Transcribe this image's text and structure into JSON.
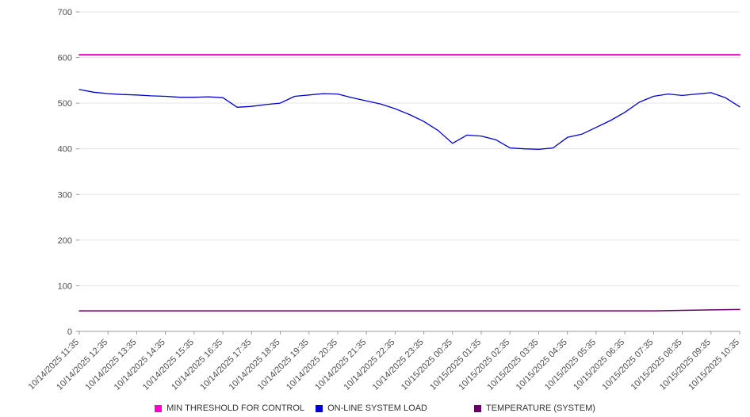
{
  "chart_data": {
    "type": "line",
    "title": "",
    "xlabel": "",
    "ylabel": "",
    "ylim": [
      0,
      700
    ],
    "yticks": [
      0,
      100,
      200,
      300,
      400,
      500,
      600,
      700
    ],
    "grid": true,
    "legend_position": "bottom",
    "x_labels": [
      "10/14/2025 11:35",
      "10/14/2025 12:35",
      "10/14/2025 13:35",
      "10/14/2025 14:35",
      "10/14/2025 15:35",
      "10/14/2025 16:35",
      "10/14/2025 17:35",
      "10/14/2025 18:35",
      "10/14/2025 19:35",
      "10/14/2025 20:35",
      "10/14/2025 21:35",
      "10/14/2025 22:35",
      "10/14/2025 23:35",
      "10/15/2025 00:35",
      "10/15/2025 01:35",
      "10/15/2025 02:35",
      "10/15/2025 03:35",
      "10/15/2025 04:35",
      "10/15/2025 05:35",
      "10/15/2025 06:35",
      "10/15/2025 07:35",
      "10/15/2025 08:35",
      "10/15/2025 09:35",
      "10/15/2025 10:35"
    ],
    "series": [
      {
        "name": "MIN THRESHOLD FOR CONTROL",
        "color": "#ff00cc",
        "width": 2,
        "values": [
          606,
          606
        ]
      },
      {
        "name": "ON-LINE SYSTEM LOAD",
        "color": "#0000cd",
        "width": 1.3,
        "values": [
          530,
          524,
          521,
          519,
          518,
          516,
          515,
          513,
          513,
          514,
          512,
          491,
          493,
          497,
          500,
          515,
          518,
          521,
          520,
          512,
          505,
          498,
          488,
          475,
          460,
          440,
          412,
          430,
          428,
          420,
          402,
          400,
          399,
          402,
          425,
          432,
          447,
          462,
          480,
          502,
          515,
          520,
          517,
          520,
          523,
          512,
          492
        ]
      },
      {
        "name": "TEMPERATURE (SYSTEM)",
        "color": "#660066",
        "width": 1.5,
        "values": [
          45,
          45,
          45,
          45,
          45,
          45,
          45,
          45,
          45,
          45,
          45,
          45,
          45,
          45,
          45,
          45,
          45,
          45,
          45,
          45,
          45,
          46,
          47,
          48
        ]
      }
    ]
  }
}
